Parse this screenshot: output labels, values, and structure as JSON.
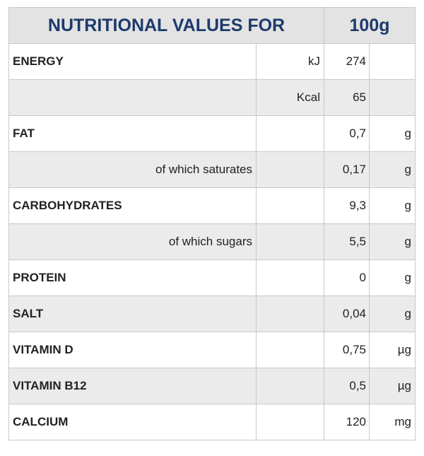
{
  "header": {
    "title": "NUTRITIONAL VALUES FOR",
    "amount": "100g"
  },
  "rows": [
    {
      "label": "ENERGY",
      "unit_label": "kJ",
      "value": "274"
    },
    {
      "unit_label": "Kcal",
      "value": "65"
    },
    {
      "label": "FAT",
      "value": "0,7",
      "unit": "g"
    },
    {
      "sublabel": "of which saturates",
      "value": "0,17",
      "unit": "g"
    },
    {
      "label": "CARBOHYDRATES",
      "value": "9,3",
      "unit": "g"
    },
    {
      "sublabel": "of which sugars",
      "value": "5,5",
      "unit": "g"
    },
    {
      "label": "PROTEIN",
      "value": "0",
      "unit": "g"
    },
    {
      "label": "SALT",
      "value": "0,04",
      "unit": "g"
    },
    {
      "label": "VITAMIN D",
      "value": "0,75",
      "unit": "µg"
    },
    {
      "label": "VITAMIN B12",
      "value": "0,5",
      "unit": "µg"
    },
    {
      "label": "CALCIUM",
      "value": "120",
      "unit": "mg"
    }
  ]
}
